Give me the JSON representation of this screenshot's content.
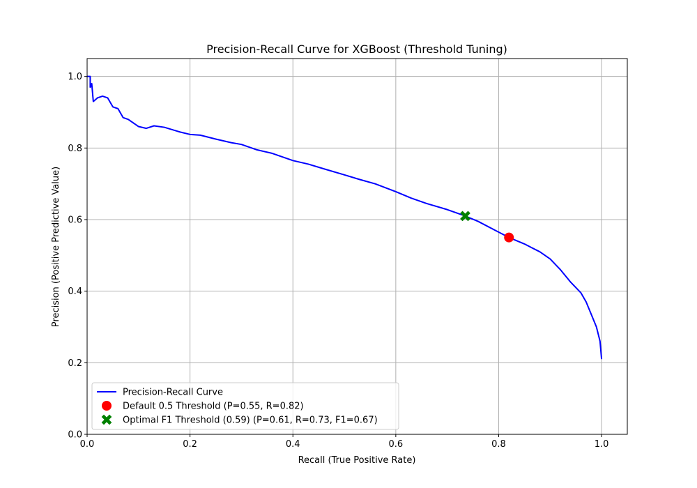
{
  "chart_data": {
    "type": "line",
    "title": "Precision-Recall Curve for XGBoost (Threshold Tuning)",
    "xlabel": "Recall (True Positive Rate)",
    "ylabel": "Precision (Positive Predictive Value)",
    "xlim": [
      0.0,
      1.05
    ],
    "ylim": [
      0.0,
      1.05
    ],
    "x_ticks": [
      0.0,
      0.2,
      0.4,
      0.6,
      0.8,
      1.0
    ],
    "y_ticks": [
      0.0,
      0.2,
      0.4,
      0.6,
      0.8,
      1.0
    ],
    "x_tick_labels": [
      "0.0",
      "0.2",
      "0.4",
      "0.6",
      "0.8",
      "1.0"
    ],
    "y_tick_labels": [
      "0.0",
      "0.2",
      "0.4",
      "0.6",
      "0.8",
      "1.0"
    ],
    "grid": true,
    "legend_position": "lower-left",
    "series": [
      {
        "name": "Precision-Recall Curve",
        "kind": "line",
        "color": "#0000ff",
        "points": [
          [
            0.0,
            1.0
          ],
          [
            0.006,
            1.0
          ],
          [
            0.006,
            0.97
          ],
          [
            0.009,
            0.98
          ],
          [
            0.012,
            0.93
          ],
          [
            0.02,
            0.94
          ],
          [
            0.03,
            0.945
          ],
          [
            0.04,
            0.94
          ],
          [
            0.05,
            0.915
          ],
          [
            0.06,
            0.91
          ],
          [
            0.07,
            0.885
          ],
          [
            0.08,
            0.88
          ],
          [
            0.1,
            0.86
          ],
          [
            0.115,
            0.855
          ],
          [
            0.13,
            0.862
          ],
          [
            0.15,
            0.858
          ],
          [
            0.18,
            0.845
          ],
          [
            0.2,
            0.838
          ],
          [
            0.22,
            0.836
          ],
          [
            0.25,
            0.825
          ],
          [
            0.28,
            0.815
          ],
          [
            0.3,
            0.81
          ],
          [
            0.33,
            0.795
          ],
          [
            0.36,
            0.785
          ],
          [
            0.4,
            0.765
          ],
          [
            0.43,
            0.755
          ],
          [
            0.46,
            0.742
          ],
          [
            0.5,
            0.725
          ],
          [
            0.53,
            0.712
          ],
          [
            0.56,
            0.7
          ],
          [
            0.6,
            0.678
          ],
          [
            0.63,
            0.66
          ],
          [
            0.66,
            0.645
          ],
          [
            0.7,
            0.628
          ],
          [
            0.735,
            0.61
          ],
          [
            0.76,
            0.595
          ],
          [
            0.8,
            0.565
          ],
          [
            0.82,
            0.55
          ],
          [
            0.85,
            0.532
          ],
          [
            0.88,
            0.51
          ],
          [
            0.9,
            0.49
          ],
          [
            0.92,
            0.46
          ],
          [
            0.94,
            0.425
          ],
          [
            0.96,
            0.395
          ],
          [
            0.97,
            0.37
          ],
          [
            0.98,
            0.335
          ],
          [
            0.99,
            0.3
          ],
          [
            0.997,
            0.26
          ],
          [
            1.0,
            0.21
          ]
        ]
      },
      {
        "name": "Default 0.5 Threshold (P=0.55, R=0.82)",
        "kind": "marker",
        "marker": "circle",
        "color": "#ff0000",
        "points": [
          [
            0.82,
            0.55
          ]
        ]
      },
      {
        "name": "Optimal F1 Threshold (0.59) (P=0.61, R=0.73, F1=0.67)",
        "kind": "marker",
        "marker": "x",
        "color": "#008000",
        "points": [
          [
            0.735,
            0.61
          ]
        ]
      }
    ]
  }
}
